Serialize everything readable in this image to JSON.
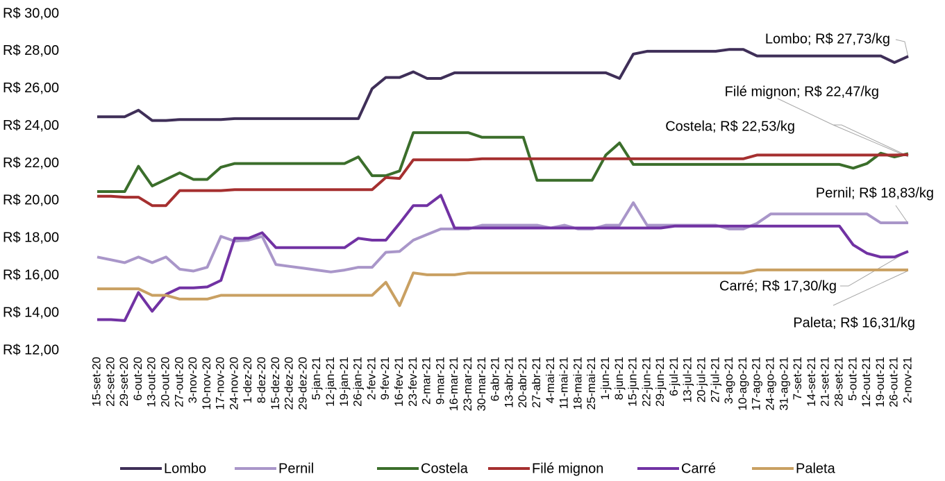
{
  "chart_data": {
    "type": "line",
    "categories": [
      "15-set-20",
      "22-set-20",
      "29-set-20",
      "6-out-20",
      "13-out-20",
      "20-out-20",
      "27-out-20",
      "3-nov-20",
      "10-nov-20",
      "17-nov-20",
      "24-nov-20",
      "1-dez-20",
      "8-dez-20",
      "15-dez-20",
      "22-dez-20",
      "29-dez-20",
      "5-jan-21",
      "12-jan-21",
      "19-jan-21",
      "26-jan-21",
      "2-fev-21",
      "9-fev-21",
      "16-fev-21",
      "23-fev-21",
      "2-mar-21",
      "9-mar-21",
      "16-mar-21",
      "23-mar-21",
      "30-mar-21",
      "6-abr-21",
      "13-abr-21",
      "20-abr-21",
      "27-abr-21",
      "4-mai-21",
      "11-mai-21",
      "18-mai-21",
      "25-mai-21",
      "1-jun-21",
      "8-jun-21",
      "15-jun-21",
      "22-jun-21",
      "29-jun-21",
      "6-jul-21",
      "13-jul-21",
      "20-jul-21",
      "27-jul-21",
      "3-ago-21",
      "10-ago-21",
      "17-ago-21",
      "24-ago-21",
      "31-ago-21",
      "7-set-21",
      "14-set-21",
      "21-set-21",
      "28-set-21",
      "5-out-21",
      "12-out-21",
      "19-out-21",
      "26-out-21",
      "2-nov-21"
    ],
    "series": [
      {
        "name": "Lombo",
        "color": "#3f2f58",
        "values": [
          24.5,
          24.5,
          24.5,
          24.85,
          24.3,
          24.3,
          24.35,
          24.35,
          24.35,
          24.35,
          24.4,
          24.4,
          24.4,
          24.4,
          24.4,
          24.4,
          24.4,
          24.4,
          24.4,
          24.4,
          26.0,
          26.6,
          26.6,
          26.9,
          26.55,
          26.55,
          26.85,
          26.85,
          26.85,
          26.85,
          26.85,
          26.85,
          26.85,
          26.85,
          26.85,
          26.85,
          26.85,
          26.85,
          26.55,
          27.85,
          28.0,
          28.0,
          28.0,
          28.0,
          28.0,
          28.0,
          28.1,
          28.1,
          27.75,
          27.75,
          27.75,
          27.75,
          27.75,
          27.75,
          27.75,
          27.75,
          27.75,
          27.75,
          27.4,
          27.73
        ]
      },
      {
        "name": "Pernil",
        "color": "#a996c9",
        "values": [
          17.0,
          16.85,
          16.7,
          17.0,
          16.7,
          17.0,
          16.35,
          16.25,
          16.45,
          18.1,
          17.85,
          17.9,
          18.1,
          16.6,
          16.5,
          16.4,
          16.3,
          16.2,
          16.3,
          16.45,
          16.45,
          17.25,
          17.3,
          17.9,
          18.2,
          18.5,
          18.5,
          18.5,
          18.7,
          18.7,
          18.7,
          18.7,
          18.7,
          18.55,
          18.7,
          18.5,
          18.5,
          18.7,
          18.7,
          19.9,
          18.7,
          18.7,
          18.7,
          18.7,
          18.7,
          18.7,
          18.5,
          18.5,
          18.8,
          19.3,
          19.3,
          19.3,
          19.3,
          19.3,
          19.3,
          19.3,
          19.3,
          18.83,
          18.83,
          18.83
        ]
      },
      {
        "name": "Costela",
        "color": "#3b6e2b",
        "values": [
          20.5,
          20.5,
          20.5,
          21.85,
          20.8,
          21.15,
          21.5,
          21.15,
          21.15,
          21.8,
          22.0,
          22.0,
          22.0,
          22.0,
          22.0,
          22.0,
          22.0,
          22.0,
          22.0,
          22.35,
          21.35,
          21.35,
          21.6,
          23.65,
          23.65,
          23.65,
          23.65,
          23.65,
          23.4,
          23.4,
          23.4,
          23.4,
          21.1,
          21.1,
          21.1,
          21.1,
          21.1,
          22.45,
          23.1,
          21.95,
          21.95,
          21.95,
          21.95,
          21.95,
          21.95,
          21.95,
          21.95,
          21.95,
          21.95,
          21.95,
          21.95,
          21.95,
          21.95,
          21.95,
          21.95,
          21.75,
          22.0,
          22.55,
          22.35,
          22.53
        ]
      },
      {
        "name": "Filé mignon",
        "color": "#a52f2f",
        "values": [
          20.25,
          20.25,
          20.2,
          20.2,
          19.75,
          19.75,
          20.55,
          20.55,
          20.55,
          20.55,
          20.6,
          20.6,
          20.6,
          20.6,
          20.6,
          20.6,
          20.6,
          20.6,
          20.6,
          20.6,
          20.6,
          21.25,
          21.2,
          22.2,
          22.2,
          22.2,
          22.2,
          22.2,
          22.25,
          22.25,
          22.25,
          22.25,
          22.25,
          22.25,
          22.25,
          22.25,
          22.25,
          22.25,
          22.25,
          22.25,
          22.25,
          22.25,
          22.25,
          22.25,
          22.25,
          22.25,
          22.25,
          22.25,
          22.45,
          22.45,
          22.45,
          22.45,
          22.45,
          22.45,
          22.45,
          22.45,
          22.45,
          22.45,
          22.45,
          22.47
        ]
      },
      {
        "name": "Carré",
        "color": "#7132a3",
        "values": [
          13.65,
          13.65,
          13.6,
          15.1,
          14.1,
          15.0,
          15.35,
          15.35,
          15.4,
          15.75,
          18.0,
          18.0,
          18.3,
          17.5,
          17.5,
          17.5,
          17.5,
          17.5,
          17.5,
          18.0,
          17.9,
          17.9,
          18.8,
          19.75,
          19.75,
          20.3,
          18.55,
          18.55,
          18.55,
          18.55,
          18.55,
          18.55,
          18.55,
          18.55,
          18.55,
          18.55,
          18.55,
          18.55,
          18.55,
          18.55,
          18.55,
          18.55,
          18.65,
          18.65,
          18.65,
          18.65,
          18.65,
          18.65,
          18.65,
          18.65,
          18.65,
          18.65,
          18.65,
          18.65,
          18.65,
          17.65,
          17.2,
          17.0,
          17.0,
          17.3
        ]
      },
      {
        "name": "Paleta",
        "color": "#c9a062",
        "values": [
          15.3,
          15.3,
          15.3,
          15.3,
          14.95,
          14.95,
          14.75,
          14.75,
          14.75,
          14.95,
          14.95,
          14.95,
          14.95,
          14.95,
          14.95,
          14.95,
          14.95,
          14.95,
          14.95,
          14.95,
          14.95,
          15.65,
          14.4,
          16.15,
          16.05,
          16.05,
          16.05,
          16.15,
          16.15,
          16.15,
          16.15,
          16.15,
          16.15,
          16.15,
          16.15,
          16.15,
          16.15,
          16.15,
          16.15,
          16.15,
          16.15,
          16.15,
          16.15,
          16.15,
          16.15,
          16.15,
          16.15,
          16.15,
          16.31,
          16.31,
          16.31,
          16.31,
          16.31,
          16.31,
          16.31,
          16.31,
          16.31,
          16.31,
          16.31,
          16.31
        ]
      }
    ],
    "ylim": [
      12,
      30
    ],
    "yticks": [
      {
        "value": 12,
        "label": "R$ 12,00"
      },
      {
        "value": 14,
        "label": "R$ 14,00"
      },
      {
        "value": 16,
        "label": "R$ 16,00"
      },
      {
        "value": 18,
        "label": "R$ 18,00"
      },
      {
        "value": 20,
        "label": "R$ 20,00"
      },
      {
        "value": 22,
        "label": "R$ 22,00"
      },
      {
        "value": 24,
        "label": "R$ 24,00"
      },
      {
        "value": 26,
        "label": "R$ 26,00"
      },
      {
        "value": 28,
        "label": "R$ 28,00"
      },
      {
        "value": 30,
        "label": "R$ 30,00"
      }
    ],
    "annotations": [
      "Lombo; R$ 27,73/kg",
      "Filé mignon; R$ 22,47/kg",
      "Costela; R$ 22,53/kg",
      "Pernil; R$ 18,83/kg",
      "Carré; R$ 17,30/kg",
      "Paleta; R$ 16,31/kg"
    ],
    "legend": "bottom",
    "grid": false
  }
}
